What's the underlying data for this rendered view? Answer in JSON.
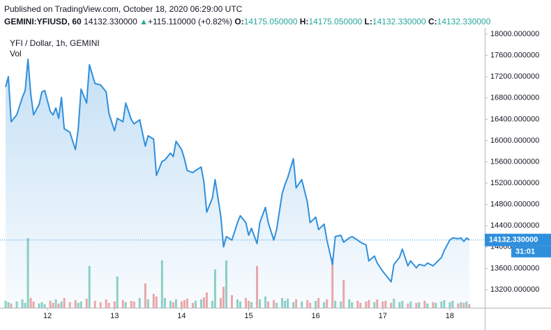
{
  "header": {
    "published": "Published on TradingView.com, October 18, 2020 06:29:00 UTC",
    "symbol": "GEMINI:YFIUSD, 60",
    "price": "14132.330000",
    "arrow": "▲",
    "change": "+115.110000 (+0.82%)",
    "o_label": "O:",
    "o": "14175.050000",
    "h_label": "H:",
    "h": "14175.050000",
    "l_label": "L:",
    "l": "14132.330000",
    "c_label": "C:",
    "c": "14132.330000"
  },
  "chart_data": {
    "type": "line",
    "title": "YFI / Dollar, 1h, GEMINI",
    "volume_title": "Vol",
    "x": [
      0,
      1,
      2,
      4,
      6,
      7,
      8,
      9,
      10,
      12,
      13,
      14,
      16,
      17,
      18,
      19,
      20,
      21,
      23,
      25,
      26,
      27,
      29,
      30,
      32,
      34,
      36,
      37,
      39,
      40,
      42,
      43,
      45,
      46,
      48,
      50,
      51,
      53,
      54,
      56,
      57,
      59,
      60,
      61,
      63,
      64,
      65,
      67,
      68,
      70,
      71,
      72,
      74,
      75,
      77,
      78,
      79,
      81,
      83,
      84,
      86,
      87,
      88,
      90,
      91,
      93,
      94,
      96,
      97,
      99,
      100,
      101,
      103,
      104,
      106,
      108,
      109,
      111,
      112,
      114,
      115,
      117,
      118,
      120,
      121,
      123,
      124,
      126,
      127,
      129,
      130,
      132,
      133,
      135,
      136,
      138,
      139,
      141,
      142,
      144,
      145,
      147,
      148,
      150,
      151,
      153,
      154,
      156,
      157,
      159,
      160,
      162,
      163,
      164,
      165,
      166
    ],
    "series": [
      {
        "name": "YFI / Dollar",
        "color": "#2f8fdc",
        "values": [
          17006,
          17203,
          16353,
          16483,
          16810,
          16941,
          17530,
          16876,
          16483,
          16680,
          16915,
          16941,
          16549,
          16483,
          16614,
          16418,
          16810,
          16222,
          16157,
          15830,
          16222,
          16967,
          16706,
          17425,
          17072,
          17046,
          16915,
          16510,
          16183,
          16418,
          16353,
          16706,
          16392,
          16314,
          16392,
          15895,
          16091,
          16026,
          15346,
          15608,
          15634,
          15765,
          15699,
          15987,
          15830,
          15660,
          15438,
          15399,
          15438,
          15504,
          15216,
          14654,
          14915,
          15268,
          14588,
          14000,
          14196,
          14131,
          14458,
          14588,
          14458,
          14222,
          14353,
          14065,
          14458,
          14745,
          14458,
          14131,
          14327,
          15007,
          15177,
          15307,
          15660,
          15111,
          15268,
          14850,
          14458,
          14562,
          14327,
          14431,
          14131,
          13673,
          14196,
          14222,
          14091,
          14170,
          14196,
          14131,
          14091,
          14039,
          13739,
          13830,
          13700,
          13543,
          13478,
          13347,
          13673,
          13804,
          13961,
          13647,
          13739,
          13608,
          13673,
          13647,
          13700,
          13647,
          13700,
          13804,
          13935,
          14131,
          14170,
          14157,
          14170,
          14105,
          14170,
          14132.33
        ],
        "value_labels": {
          "115": "14132.330000"
        }
      }
    ],
    "volume": {
      "up_color": "#8fd2c4",
      "down_color": "#f1a7a7",
      "values": [
        10,
        8,
        6,
        9,
        12,
        7,
        100,
        14,
        9,
        6,
        8,
        5,
        10,
        7,
        12,
        6,
        9,
        14,
        8,
        11,
        7,
        9,
        13,
        60,
        10,
        8,
        12,
        7,
        9,
        45,
        11,
        8,
        10,
        9,
        14,
        35,
        12,
        20,
        16,
        68,
        14,
        10,
        8,
        12,
        9,
        11,
        13,
        7,
        10,
        12,
        15,
        22,
        10,
        55,
        14,
        30,
        68,
        18,
        12,
        9,
        14,
        10,
        8,
        60,
        12,
        16,
        9,
        11,
        7,
        14,
        10,
        13,
        8,
        12,
        9,
        11,
        7,
        10,
        14,
        8,
        12,
        72,
        10,
        9,
        40,
        12,
        8,
        10,
        7,
        9,
        11,
        8,
        12,
        9,
        10,
        7,
        13,
        8,
        10,
        6,
        9,
        7,
        8,
        10,
        6,
        8,
        7,
        9,
        11,
        8,
        10,
        6,
        8,
        7,
        9,
        5
      ]
    },
    "vol_lim": [
      0,
      100
    ],
    "countdown": "31:01",
    "xlim": [
      -2,
      171.5
    ],
    "xticks": [
      {
        "value": 15,
        "label": "12"
      },
      {
        "value": 39,
        "label": "13"
      },
      {
        "value": 63,
        "label": "14"
      },
      {
        "value": 87,
        "label": "15"
      },
      {
        "value": 111,
        "label": "16"
      },
      {
        "value": 135,
        "label": "17"
      },
      {
        "value": 159,
        "label": "18"
      }
    ],
    "ylim": [
      12860,
      18118
    ],
    "yticks": [
      {
        "value": 13200,
        "label": "13200.000000"
      },
      {
        "value": 13600,
        "label": "13600.000000"
      },
      {
        "value": 14000,
        "label": "14000.000000"
      },
      {
        "value": 14400,
        "label": "14400.000000"
      },
      {
        "value": 14800,
        "label": "14800.000000"
      },
      {
        "value": 15200,
        "label": "15200.000000"
      },
      {
        "value": 15600,
        "label": "15600.000000"
      },
      {
        "value": 16000,
        "label": "16000.000000"
      },
      {
        "value": 16400,
        "label": "16400.000000"
      },
      {
        "value": 16800,
        "label": "16800.000000"
      },
      {
        "value": 17200,
        "label": "17200.000000"
      },
      {
        "value": 17600,
        "label": "17600.000000"
      },
      {
        "value": 18000,
        "label": "18000.000000"
      }
    ]
  }
}
